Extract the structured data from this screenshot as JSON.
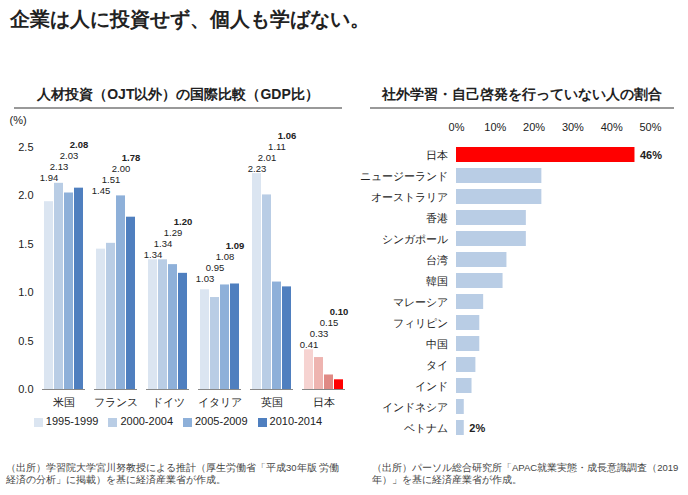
{
  "title": "企業は人に投資せず、個人も学ばない。",
  "chart_data": [
    {
      "type": "bar",
      "title": "人材投資（OJT以外）の国際比較（GDP比）",
      "ylabel": "(%)",
      "categories": [
        "米国",
        "フランス",
        "ドイツ",
        "イタリア",
        "英国",
        "日本"
      ],
      "series": [
        {
          "name": "1995-1999",
          "colors": [
            "#dbe5f1",
            "#dbe5f1",
            "#dbe5f1",
            "#dbe5f1",
            "#dbe5f1",
            "#f6d3d1"
          ],
          "values": [
            1.94,
            1.45,
            1.34,
            1.03,
            2.23,
            0.41
          ],
          "value_labels": [
            "1.94",
            "1.45",
            "1.34",
            "1.03",
            "2.23",
            "0.41"
          ]
        },
        {
          "name": "2000-2004",
          "colors": [
            "#b9cde5",
            "#b9cde5",
            "#b9cde5",
            "#b9cde5",
            "#b9cde5",
            "#eeb4b0"
          ],
          "values": [
            2.13,
            1.51,
            1.34,
            0.95,
            2.01,
            0.33
          ],
          "value_labels": [
            "2.13",
            "1.51",
            "1.34",
            "0.95",
            "2.01",
            "0.33"
          ]
        },
        {
          "name": "2005-2009",
          "colors": [
            "#8eb0d9",
            "#8eb0d9",
            "#8eb0d9",
            "#8eb0d9",
            "#8eb0d9",
            "#e08a85"
          ],
          "values": [
            2.03,
            2.0,
            1.29,
            1.08,
            1.11,
            0.15
          ],
          "value_labels": [
            "2.03",
            "2.00",
            "1.29",
            "1.08",
            "1.11",
            "0.15"
          ]
        },
        {
          "name": "2010-2014",
          "colors": [
            "#4f7fbf",
            "#4f7fbf",
            "#4f7fbf",
            "#4f7fbf",
            "#4f7fbf",
            "#ff0000"
          ],
          "values": [
            2.08,
            1.78,
            1.2,
            1.09,
            1.06,
            0.1
          ],
          "value_labels": [
            "2.08",
            "1.78",
            "1.20",
            "1.09",
            "1.06",
            "0.10"
          ]
        }
      ],
      "ylim": [
        0,
        2.5
      ],
      "yticks": [
        {
          "value": 0,
          "label": "0.0"
        },
        {
          "value": 0.5,
          "label": "0.5"
        },
        {
          "value": 1,
          "label": "1.0"
        },
        {
          "value": 1.5,
          "label": "1.5"
        },
        {
          "value": 2,
          "label": "2.0"
        },
        {
          "value": 2.5,
          "label": "2.5"
        }
      ],
      "data_labels": true,
      "legend": "bottom",
      "source": "（出所）学習院大学宮川努教授による推計（厚生労働省「平成30年版 労働経済の分析」に掲載）を基に経済産業省が作成。"
    },
    {
      "type": "bar",
      "orientation": "horizontal",
      "title": "社外学習・自己啓発を行っていない人の割合",
      "categories": [
        "日本",
        "ニュージーランド",
        "オーストラリア",
        "香港",
        "シンガポール",
        "台湾",
        "韓国",
        "マレーシア",
        "フィリピン",
        "中国",
        "タイ",
        "インド",
        "インドネシア",
        "ベトナム"
      ],
      "values": [
        46,
        22,
        22,
        18,
        18,
        13,
        12,
        7,
        6,
        6,
        5,
        4,
        2,
        2
      ],
      "value_labels": [
        "46%",
        null,
        null,
        null,
        null,
        null,
        null,
        null,
        null,
        null,
        null,
        null,
        null,
        "2%"
      ],
      "colors": [
        "#ff0000",
        "#b9cde5",
        "#b9cde5",
        "#b9cde5",
        "#b9cde5",
        "#b9cde5",
        "#b9cde5",
        "#b9cde5",
        "#b9cde5",
        "#b9cde5",
        "#b9cde5",
        "#b9cde5",
        "#b9cde5",
        "#b9cde5"
      ],
      "xlim": [
        0,
        50
      ],
      "xticks": [
        {
          "value": 0,
          "label": "0%"
        },
        {
          "value": 10,
          "label": "10%"
        },
        {
          "value": 20,
          "label": "20%"
        },
        {
          "value": 30,
          "label": "30%"
        },
        {
          "value": 40,
          "label": "40%"
        },
        {
          "value": 50,
          "label": "50%"
        }
      ],
      "source": "（出所）パーソル総合研究所「APAC就業実態・成長意識調査（2019年）」を基に経済産業省が作成。"
    }
  ]
}
